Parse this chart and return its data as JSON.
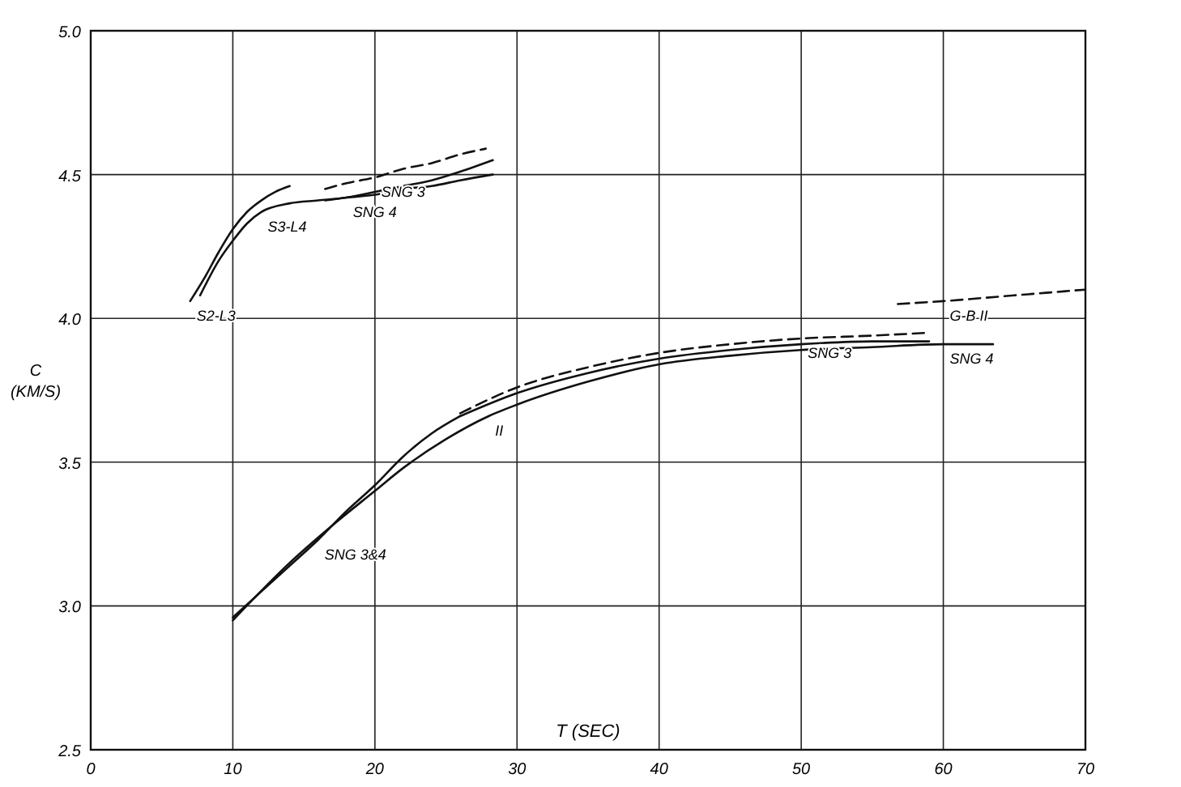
{
  "chart_data": {
    "type": "line",
    "xlabel": "T (SEC)",
    "ylabel": "C (KM/S)",
    "xlim": [
      0,
      70
    ],
    "xticks": [
      0,
      10,
      20,
      30,
      40,
      50,
      60,
      70
    ],
    "ylim": [
      2.5,
      5.0
    ],
    "yticks": [
      2.5,
      {
        "value": 3,
        "label": "3.0"
      },
      3.5,
      {
        "value": 4,
        "label": "4.0"
      },
      4.5,
      {
        "value": 5,
        "label": "5.0"
      }
    ],
    "grid": true,
    "marker": "none",
    "series": [
      {
        "color": "#111111",
        "line_style": "solid",
        "x": [
          7,
          8,
          9,
          10,
          11,
          12,
          13,
          14
        ],
        "values": [
          4.06,
          4.14,
          4.23,
          4.31,
          4.37,
          4.41,
          4.44,
          4.46
        ]
      },
      {
        "color": "#111111",
        "line_style": "solid",
        "x": [
          7.7,
          9,
          10,
          11,
          12,
          14,
          16,
          18,
          20,
          22,
          24,
          26,
          28.3
        ],
        "values": [
          4.08,
          4.2,
          4.27,
          4.33,
          4.37,
          4.4,
          4.41,
          4.42,
          4.44,
          4.46,
          4.48,
          4.51,
          4.55
        ]
      },
      {
        "color": "#111111",
        "line_style": "dashed",
        "x": [
          16.5,
          18,
          20,
          22,
          24,
          26,
          27.8
        ],
        "values": [
          4.45,
          4.47,
          4.49,
          4.52,
          4.54,
          4.57,
          4.59
        ]
      },
      {
        "color": "#111111",
        "line_style": "solid",
        "x": [
          16.5,
          18,
          20,
          22,
          24,
          26,
          28.3
        ],
        "values": [
          4.41,
          4.42,
          4.43,
          4.45,
          4.46,
          4.48,
          4.5
        ]
      },
      {
        "color": "#111111",
        "line_style": "solid",
        "x": [
          10,
          12,
          14,
          16,
          18,
          20,
          22,
          24,
          26
        ],
        "values": [
          2.96,
          3.05,
          3.14,
          3.23,
          3.33,
          3.42,
          3.52,
          3.6,
          3.66
        ]
      },
      {
        "color": "#111111",
        "line_style": "dashed",
        "x": [
          26,
          30,
          35,
          40,
          45,
          50,
          55,
          59
        ],
        "values": [
          3.67,
          3.76,
          3.83,
          3.88,
          3.91,
          3.93,
          3.94,
          3.95
        ]
      },
      {
        "color": "#111111",
        "line_style": "solid",
        "x": [
          26,
          30,
          35,
          40,
          45,
          50,
          55,
          59
        ],
        "values": [
          3.66,
          3.74,
          3.81,
          3.86,
          3.89,
          3.91,
          3.92,
          3.92
        ]
      },
      {
        "color": "#111111",
        "line_style": "solid",
        "x": [
          10,
          14,
          17,
          20,
          22,
          25,
          28,
          30,
          35,
          40,
          45,
          50,
          55,
          60,
          63.5
        ],
        "values": [
          2.95,
          3.15,
          3.28,
          3.4,
          3.48,
          3.58,
          3.66,
          3.7,
          3.78,
          3.84,
          3.87,
          3.89,
          3.9,
          3.91,
          3.91
        ]
      },
      {
        "color": "#111111",
        "line_style": "dashed",
        "x": [
          56.8,
          60,
          65,
          70
        ],
        "values": [
          4.05,
          4.06,
          4.08,
          4.1
        ]
      }
    ],
    "annotations": [
      {
        "text": "S2-L3",
        "x": 7,
        "y": 4.06
      },
      {
        "text": "S3-L4",
        "x": 12,
        "y": 4.37
      },
      {
        "text": "SNG 3",
        "x": 20,
        "y": 4.49
      },
      {
        "text": "SNG 4",
        "x": 18,
        "y": 4.42
      },
      {
        "text": "SNG 3",
        "x": 50,
        "y": 3.93
      },
      {
        "text": "SNG 4",
        "x": 60,
        "y": 3.91
      },
      {
        "text": "G-B II",
        "x": 60,
        "y": 4.06
      },
      {
        "text": "II",
        "x": 28,
        "y": 3.66
      },
      {
        "text": "SNG 3&4",
        "x": 16,
        "y": 3.23
      }
    ]
  }
}
